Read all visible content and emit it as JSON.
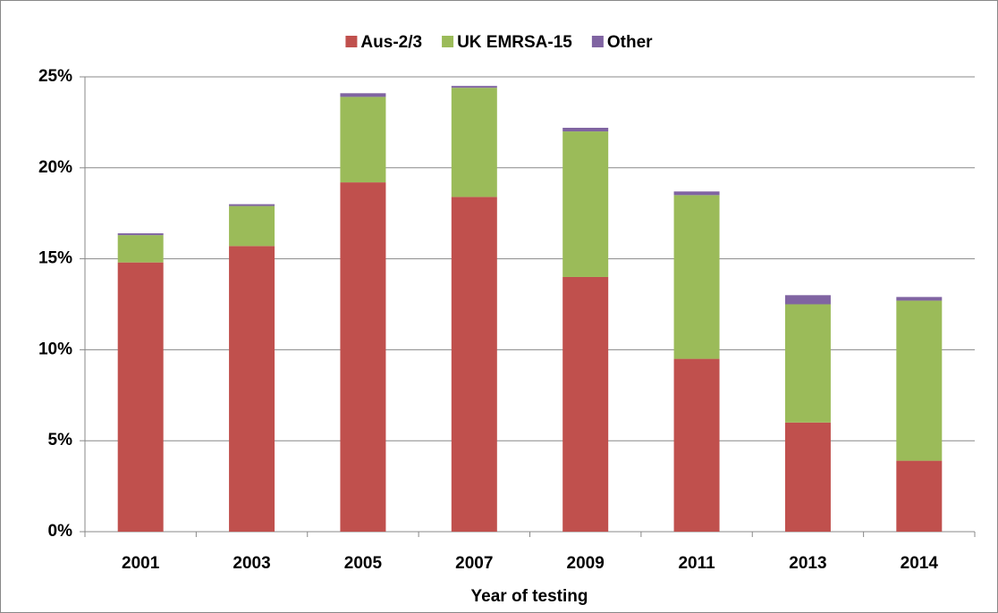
{
  "chart_data": {
    "type": "stacked_bar",
    "x_label": "Year of testing",
    "categories": [
      "2001",
      "2003",
      "2005",
      "2007",
      "2009",
      "2011",
      "2013",
      "2014"
    ],
    "series": [
      {
        "name": "Aus-2/3",
        "color": "#c0504d",
        "values": [
          14.8,
          15.7,
          19.2,
          18.4,
          14.0,
          9.5,
          6.0,
          3.9
        ]
      },
      {
        "name": "UK EMRSA-15",
        "color": "#9bbb59",
        "values": [
          1.5,
          2.2,
          4.7,
          6.0,
          8.0,
          9.0,
          6.5,
          8.8
        ]
      },
      {
        "name": "Other",
        "color": "#8064a2",
        "values": [
          0.1,
          0.1,
          0.2,
          0.1,
          0.2,
          0.2,
          0.5,
          0.2
        ]
      }
    ],
    "ylim": [
      0,
      25
    ],
    "yticks": [
      {
        "value": 0,
        "label": "0%"
      },
      {
        "value": 5,
        "label": "5%"
      },
      {
        "value": 10,
        "label": "10%"
      },
      {
        "value": 15,
        "label": "15%"
      },
      {
        "value": 20,
        "label": "20%"
      },
      {
        "value": 25,
        "label": "25%"
      }
    ],
    "grid": true,
    "legend": "top"
  }
}
